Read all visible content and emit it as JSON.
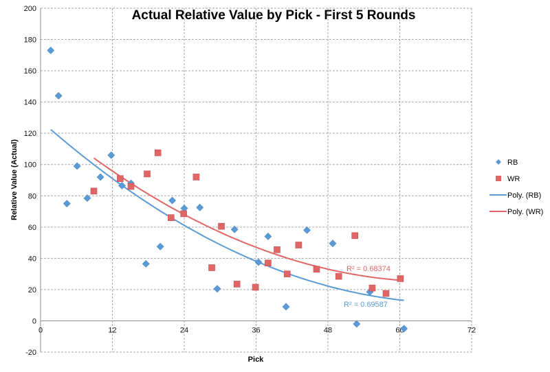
{
  "chart_data": {
    "type": "scatter",
    "title": "Actual Relative Value by Pick - First 5 Rounds",
    "xlabel": "Pick",
    "ylabel": "Relative Value (Actual)",
    "xlim": [
      0,
      72
    ],
    "ylim": [
      -20,
      200
    ],
    "xticks": [
      0,
      12,
      24,
      36,
      48,
      60,
      72
    ],
    "yticks": [
      -20,
      0,
      20,
      40,
      60,
      80,
      100,
      120,
      140,
      160,
      180,
      200
    ],
    "grid": true,
    "legend_position": "right",
    "series": [
      {
        "name": "RB",
        "marker": "diamond",
        "color": "#5b9bd5",
        "points": [
          [
            1.7,
            173
          ],
          [
            3.0,
            144
          ],
          [
            4.4,
            75
          ],
          [
            6.1,
            99
          ],
          [
            7.8,
            78.5
          ],
          [
            10.0,
            92
          ],
          [
            11.8,
            106
          ],
          [
            13.6,
            86.5
          ],
          [
            15.1,
            88
          ],
          [
            17.6,
            36.5
          ],
          [
            20.0,
            47.5
          ],
          [
            22.0,
            77
          ],
          [
            24.0,
            72
          ],
          [
            26.6,
            72.5
          ],
          [
            29.5,
            20.5
          ],
          [
            32.4,
            58.5
          ],
          [
            36.4,
            37.5
          ],
          [
            38.0,
            54
          ],
          [
            41.0,
            9
          ],
          [
            44.5,
            58
          ],
          [
            48.8,
            49.5
          ],
          [
            52.8,
            -2
          ],
          [
            55.0,
            18.5
          ],
          [
            60.7,
            -5
          ]
        ]
      },
      {
        "name": "WR",
        "marker": "square",
        "color": "#e06666",
        "points": [
          [
            8.9,
            83
          ],
          [
            13.3,
            91
          ],
          [
            15.1,
            86
          ],
          [
            17.8,
            94
          ],
          [
            19.6,
            107.5
          ],
          [
            21.8,
            66
          ],
          [
            23.9,
            68.5
          ],
          [
            26.0,
            92
          ],
          [
            28.6,
            34
          ],
          [
            30.2,
            60.5
          ],
          [
            32.8,
            23.5
          ],
          [
            35.9,
            21.5
          ],
          [
            38.0,
            37
          ],
          [
            39.5,
            45.5
          ],
          [
            41.2,
            30
          ],
          [
            43.1,
            48.5
          ],
          [
            46.1,
            33
          ],
          [
            49.8,
            28.5
          ],
          [
            52.5,
            54.5
          ],
          [
            55.4,
            21
          ],
          [
            57.7,
            17.5
          ],
          [
            60.1,
            27
          ]
        ]
      }
    ],
    "trendlines": [
      {
        "name": "Poly. (RB)",
        "series": "RB",
        "color": "#5b9bd5",
        "x_range": [
          1.7,
          60.7
        ],
        "points": [
          [
            1.7,
            123
          ],
          [
            12,
            90
          ],
          [
            24,
            61
          ],
          [
            36,
            39
          ],
          [
            48,
            22
          ],
          [
            60.7,
            13
          ]
        ],
        "r2_label": "R² = 0.69587"
      },
      {
        "name": "Poly. (WR)",
        "series": "WR",
        "color": "#e06666",
        "x_range": [
          8.9,
          60.1
        ],
        "points": [
          [
            8.9,
            104
          ],
          [
            16,
            86
          ],
          [
            24,
            68
          ],
          [
            36,
            47
          ],
          [
            48,
            33
          ],
          [
            60.1,
            26
          ]
        ],
        "r2_label": "R² = 0.68374"
      }
    ],
    "legend": [
      {
        "label": "RB",
        "kind": "diamond",
        "color": "#5b9bd5"
      },
      {
        "label": "WR",
        "kind": "square",
        "color": "#e06666"
      },
      {
        "label": "Poly. (RB)",
        "kind": "line",
        "color": "#5b9bd5"
      },
      {
        "label": "Poly. (WR)",
        "kind": "line",
        "color": "#e06666"
      }
    ]
  }
}
